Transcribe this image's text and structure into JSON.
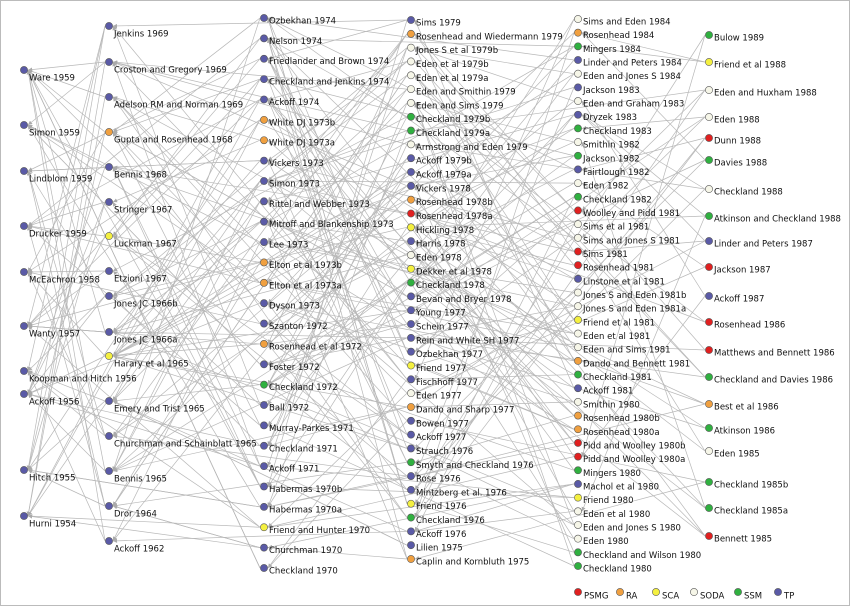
{
  "columns": [
    [
      {
        "label": "Ware 1959",
        "group": "TP"
      },
      {
        "label": "Simon 1959",
        "group": "TP"
      },
      {
        "label": "Lindblom 1959",
        "group": "TP"
      },
      {
        "label": "Drucker 1959",
        "group": "TP"
      },
      {
        "label": "McEachron 1958",
        "group": "TP"
      },
      {
        "label": "Wanty 1957",
        "group": "TP"
      },
      {
        "label": "Koopman and Hitch 1956",
        "group": "TP"
      },
      {
        "label": "Ackoff 1956",
        "group": "TP"
      },
      {
        "label": "Hitch 1955",
        "group": "TP"
      },
      {
        "label": "Hurni 1954",
        "group": "TP"
      }
    ],
    [
      {
        "label": "Jenkins 1969",
        "group": "TP"
      },
      {
        "label": "Croston and Gregory 1969",
        "group": "TP"
      },
      {
        "label": "Adelson RM and Norman 1969",
        "group": "TP"
      },
      {
        "label": "Gupta and Rosenhead 1968",
        "group": "RA"
      },
      {
        "label": "Bennis 1968",
        "group": "TP"
      },
      {
        "label": "Stringer 1967",
        "group": "TP"
      },
      {
        "label": "Luckman 1967",
        "group": "SCA"
      },
      {
        "label": "Etzioni 1967",
        "group": "TP"
      },
      {
        "label": "Jones JC 1966b",
        "group": "TP"
      },
      {
        "label": "Jones JC 1966a",
        "group": "TP"
      },
      {
        "label": "Harary et al 1965",
        "group": "SCA"
      },
      {
        "label": "Emery and Trist 1965",
        "group": "TP"
      },
      {
        "label": "Churchman and Schainblatt 1965",
        "group": "TP"
      },
      {
        "label": "Bennis 1965",
        "group": "TP"
      },
      {
        "label": "Dror 1964",
        "group": "TP"
      },
      {
        "label": "Ackoff 1962",
        "group": "TP"
      }
    ],
    [
      {
        "label": "Ozbekhan 1974",
        "group": "TP"
      },
      {
        "label": "Nelson 1974",
        "group": "TP"
      },
      {
        "label": "Friedlander and Brown 1974",
        "group": "TP"
      },
      {
        "label": "Checkland and Jenkins 1974",
        "group": "TP"
      },
      {
        "label": "Ackoff 1974",
        "group": "TP"
      },
      {
        "label": "White DJ 1973b",
        "group": "RA"
      },
      {
        "label": "White DJ 1973a",
        "group": "RA"
      },
      {
        "label": "Vickers 1973",
        "group": "TP"
      },
      {
        "label": "Simon 1973",
        "group": "TP"
      },
      {
        "label": "Rittel and Webber 1973",
        "group": "TP"
      },
      {
        "label": "Mitroff and Blankenship 1973",
        "group": "TP"
      },
      {
        "label": "Lee 1973",
        "group": "TP"
      },
      {
        "label": "Elton et al 1973b",
        "group": "RA"
      },
      {
        "label": "Elton et al 1973a",
        "group": "RA"
      },
      {
        "label": "Dyson 1973",
        "group": "TP"
      },
      {
        "label": "Szanton 1972",
        "group": "TP"
      },
      {
        "label": "Rosenhead et al 1972",
        "group": "RA"
      },
      {
        "label": "Foster 1972",
        "group": "TP"
      },
      {
        "label": "Checkland 1972",
        "group": "SSM"
      },
      {
        "label": "Ball 1972",
        "group": "TP"
      },
      {
        "label": "Murray-Parkes 1971",
        "group": "TP"
      },
      {
        "label": "Checkland 1971",
        "group": "TP"
      },
      {
        "label": "Ackoff 1971",
        "group": "TP"
      },
      {
        "label": "Habermas 1970b",
        "group": "TP"
      },
      {
        "label": "Habermas 1970a",
        "group": "TP"
      },
      {
        "label": "Friend and Hunter 1970",
        "group": "SCA"
      },
      {
        "label": "Churchman 1970",
        "group": "TP"
      },
      {
        "label": "Checkland 1970",
        "group": "TP"
      }
    ],
    [
      {
        "label": "Sims 1979",
        "group": "TP"
      },
      {
        "label": "Rosenhead and Wiedermann 1979",
        "group": "RA"
      },
      {
        "label": "Jones S et al 1979b",
        "group": "SODA"
      },
      {
        "label": "Eden et al 1979b",
        "group": "SODA"
      },
      {
        "label": "Eden et al 1979a",
        "group": "SODA"
      },
      {
        "label": "Eden and Smithin 1979",
        "group": "SODA"
      },
      {
        "label": "Eden and Sims 1979",
        "group": "SODA"
      },
      {
        "label": "Checkland 1979b",
        "group": "SSM"
      },
      {
        "label": "Checkland 1979a",
        "group": "SSM"
      },
      {
        "label": "Armstrong and Eden 1979",
        "group": "SODA"
      },
      {
        "label": "Ackoff 1979b",
        "group": "TP"
      },
      {
        "label": "Ackoff 1979a",
        "group": "TP"
      },
      {
        "label": "Vickers 1978",
        "group": "TP"
      },
      {
        "label": "Rosenhead 1978b",
        "group": "RA"
      },
      {
        "label": "Rosenhead 1978a",
        "group": "PSMG"
      },
      {
        "label": "Hickling 1978",
        "group": "SCA"
      },
      {
        "label": "Harris 1978",
        "group": "TP"
      },
      {
        "label": "Eden 1978",
        "group": "SODA"
      },
      {
        "label": "Dekker et al 1978",
        "group": "SCA"
      },
      {
        "label": "Checkland 1978",
        "group": "SSM"
      },
      {
        "label": "Bevan and Bryer 1978",
        "group": "TP"
      },
      {
        "label": "Young 1977",
        "group": "TP"
      },
      {
        "label": "Schein 1977",
        "group": "TP"
      },
      {
        "label": "Rein and White SH 1977",
        "group": "TP"
      },
      {
        "label": "Ozbekhan 1977",
        "group": "TP"
      },
      {
        "label": "Friend 1977",
        "group": "SCA"
      },
      {
        "label": "Fischhoff 1977",
        "group": "TP"
      },
      {
        "label": "Eden 1977",
        "group": "SODA"
      },
      {
        "label": "Dando and Sharp 1977",
        "group": "RA"
      },
      {
        "label": "Bowen 1977",
        "group": "TP"
      },
      {
        "label": "Ackoff 1977",
        "group": "TP"
      },
      {
        "label": "Strauch 1976",
        "group": "TP"
      },
      {
        "label": "Smyth and Checkland 1976",
        "group": "SSM"
      },
      {
        "label": "Rose 1976",
        "group": "TP"
      },
      {
        "label": "Mintzberg et al. 1976",
        "group": "TP"
      },
      {
        "label": "Friend 1976",
        "group": "SCA"
      },
      {
        "label": "Checkland 1976",
        "group": "SSM"
      },
      {
        "label": "Ackoff 1976",
        "group": "TP"
      },
      {
        "label": "Lilien 1975",
        "group": "TP"
      },
      {
        "label": "Caplin and Kornbluth 1975",
        "group": "RA"
      }
    ],
    [
      {
        "label": "Sims and Eden 1984",
        "group": "SODA"
      },
      {
        "label": "Rosenhead 1984",
        "group": "RA"
      },
      {
        "label": "Mingers 1984",
        "group": "SSM"
      },
      {
        "label": "Linder and Peters 1984",
        "group": "TP"
      },
      {
        "label": "Eden and Jones S 1984",
        "group": "SODA"
      },
      {
        "label": "Jackson 1983",
        "group": "TP"
      },
      {
        "label": "Eden and Graham 1983",
        "group": "SODA"
      },
      {
        "label": "Dryzek 1983",
        "group": "TP"
      },
      {
        "label": "Checkland 1983",
        "group": "SSM"
      },
      {
        "label": "Smithin 1982",
        "group": "SODA"
      },
      {
        "label": "Jackson 1982",
        "group": "SSM"
      },
      {
        "label": "Fairtlough 1982",
        "group": "TP"
      },
      {
        "label": "Eden 1982",
        "group": "SODA"
      },
      {
        "label": "Checkland 1982",
        "group": "SSM"
      },
      {
        "label": "Woolley and Pidd 1981",
        "group": "PSMG"
      },
      {
        "label": "Sims et al 1981",
        "group": "SODA"
      },
      {
        "label": "Sims and Jones S 1981",
        "group": "SODA"
      },
      {
        "label": "Sims 1981",
        "group": "PSMG"
      },
      {
        "label": "Rosenhead 1981",
        "group": "PSMG"
      },
      {
        "label": "Linstone et al 1981",
        "group": "TP"
      },
      {
        "label": "Jones S and Eden 1981b",
        "group": "SODA"
      },
      {
        "label": "Jones S and Eden 1981a",
        "group": "SODA"
      },
      {
        "label": "Friend et al 1981",
        "group": "SCA"
      },
      {
        "label": "Eden et al 1981",
        "group": "SODA"
      },
      {
        "label": "Eden and Sims 1981",
        "group": "SODA"
      },
      {
        "label": "Dando and Bennett 1981",
        "group": "RA"
      },
      {
        "label": "Checkland 1981",
        "group": "SSM"
      },
      {
        "label": "Ackoff 1981",
        "group": "TP"
      },
      {
        "label": "Smithin 1980",
        "group": "SODA"
      },
      {
        "label": "Rosenhead 1980b",
        "group": "RA"
      },
      {
        "label": "Rosenhead 1980a",
        "group": "RA"
      },
      {
        "label": "Pidd and Woolley 1980b",
        "group": "PSMG"
      },
      {
        "label": "Pidd and Woolley 1980a",
        "group": "PSMG"
      },
      {
        "label": "Mingers 1980",
        "group": "SSM"
      },
      {
        "label": "Machol et al 1980",
        "group": "TP"
      },
      {
        "label": "Friend 1980",
        "group": "SCA"
      },
      {
        "label": "Eden et al 1980",
        "group": "SODA"
      },
      {
        "label": "Eden and Jones S 1980",
        "group": "SODA"
      },
      {
        "label": "Eden 1980",
        "group": "SODA"
      },
      {
        "label": "Checkland and Wilson 1980",
        "group": "SSM"
      },
      {
        "label": "Checkland 1980",
        "group": "SSM"
      }
    ],
    [
      {
        "label": "Bulow 1989",
        "group": "SSM"
      },
      {
        "label": "Friend et al 1988",
        "group": "SCA"
      },
      {
        "label": "Eden and Huxham 1988",
        "group": "SODA"
      },
      {
        "label": "Eden 1988",
        "group": "SODA"
      },
      {
        "label": "Dunn 1988",
        "group": "PSMG"
      },
      {
        "label": "Davies 1988",
        "group": "SSM"
      },
      {
        "label": "Checkland 1988",
        "group": "SODA"
      },
      {
        "label": "Atkinson and Checkland 1988",
        "group": "SSM"
      },
      {
        "label": "Linder and Peters 1987",
        "group": "TP"
      },
      {
        "label": "Jackson 1987",
        "group": "PSMG"
      },
      {
        "label": "Ackoff 1987",
        "group": "TP"
      },
      {
        "label": "Rosenhead 1986",
        "group": "PSMG"
      },
      {
        "label": "Matthews and Bennett 1986",
        "group": "PSMG"
      },
      {
        "label": "Checkland and Davies 1986",
        "group": "SSM"
      },
      {
        "label": "Best et al 1986",
        "group": "RA"
      },
      {
        "label": "Atkinson 1986",
        "group": "SSM"
      },
      {
        "label": "Eden 1985",
        "group": "SODA"
      },
      {
        "label": "Checkland 1985b",
        "group": "SSM"
      },
      {
        "label": "Checkland 1985a",
        "group": "SSM"
      },
      {
        "label": "Bennett 1985",
        "group": "PSMG"
      }
    ]
  ],
  "legend": [
    {
      "label": "PSMG",
      "color": "#e02020"
    },
    {
      "label": "RA",
      "color": "#f0a040"
    },
    {
      "label": "SCA",
      "color": "#f4f040"
    },
    {
      "label": "SODA",
      "color": "#f6f6e8"
    },
    {
      "label": "SSM",
      "color": "#30b040"
    },
    {
      "label": "TP",
      "color": "#5a5aa6"
    }
  ]
}
